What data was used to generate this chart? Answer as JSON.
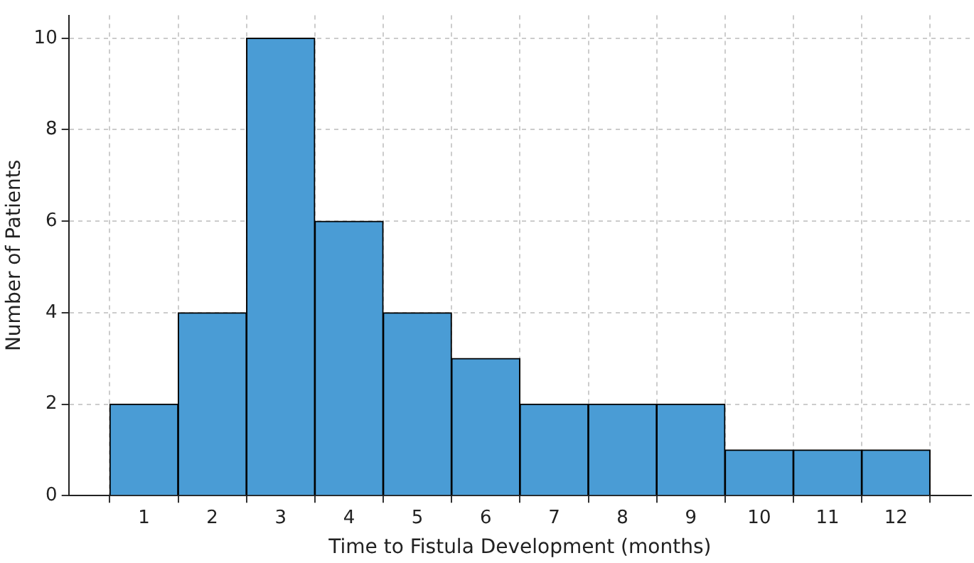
{
  "chart_data": {
    "type": "histogram",
    "xlabel": "Time to Fistula Development (months)",
    "ylabel": "Number of Patients",
    "bins": [
      0.5,
      1.5,
      2.5,
      3.5,
      4.5,
      5.5,
      6.5,
      7.5,
      8.5,
      9.5,
      10.5,
      11.5,
      12.5
    ],
    "values": [
      2,
      4,
      10,
      6,
      4,
      3,
      2,
      2,
      2,
      1,
      1,
      1
    ],
    "color": "#4a9cd5",
    "xlim": [
      -0.1,
      13.1
    ],
    "xticks": [
      1,
      2,
      3,
      4,
      5,
      6,
      7,
      8,
      9,
      10,
      11,
      12
    ],
    "ylim": [
      0,
      10.5
    ],
    "yticks": [
      0,
      2,
      4,
      6,
      8,
      10
    ],
    "grid": true,
    "legend": false
  }
}
